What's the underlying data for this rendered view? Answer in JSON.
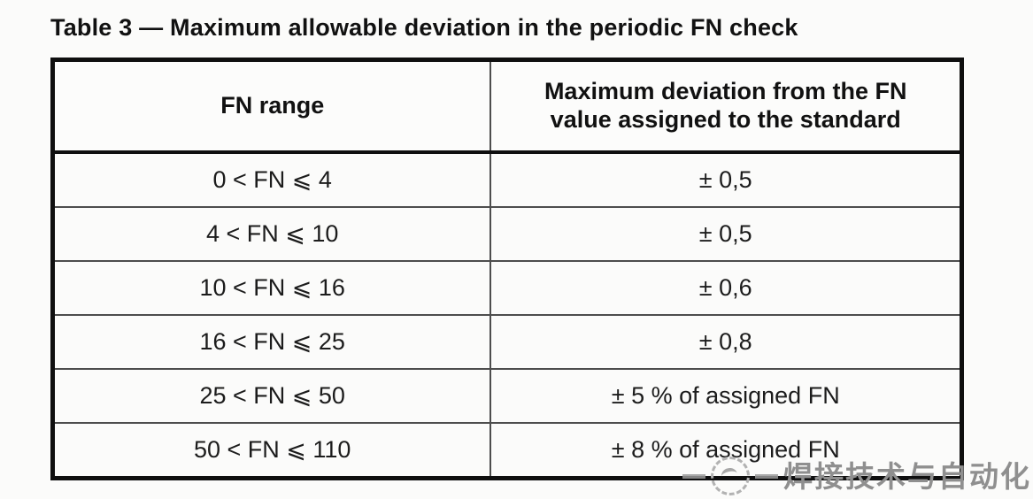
{
  "title": "Table 3 — Maximum allowable deviation in the periodic FN check",
  "table": {
    "columns": [
      "FN range",
      "Maximum deviation from the FN value assigned to the standard"
    ],
    "rows": [
      {
        "range": "0 < FN ⩽ 4",
        "deviation": "± 0,5"
      },
      {
        "range": "4 < FN ⩽ 10",
        "deviation": "± 0,5"
      },
      {
        "range": "10 < FN ⩽ 16",
        "deviation": "± 0,6"
      },
      {
        "range": "16 < FN ⩽ 25",
        "deviation": "± 0,8"
      },
      {
        "range": "25 < FN ⩽ 50",
        "deviation": "± 5 % of assigned FN"
      },
      {
        "range": "50 < FN ⩽ 110",
        "deviation": "± 8 % of assigned FN"
      }
    ]
  },
  "watermark": {
    "logo": "dashed-circle-logo",
    "text": "焊接技术与自动化"
  },
  "colors": {
    "outer_border": "#0f0f0f",
    "inner_border": "#4d4d4d",
    "text": "#1a1a1a",
    "watermark_text": "#8f8f8f",
    "background": "#fbfbfa"
  }
}
